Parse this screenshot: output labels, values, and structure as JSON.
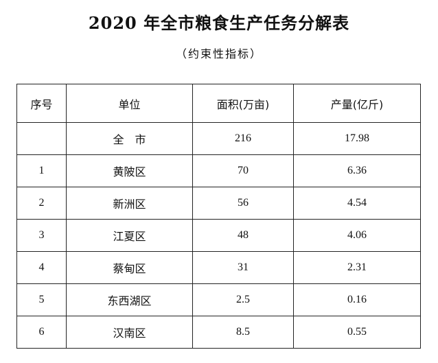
{
  "document": {
    "title": "2020 年全市粮食生产任务分解表",
    "subtitle": "（约束性指标）"
  },
  "table": {
    "headers": [
      "序号",
      "单位",
      "面积(万亩)",
      "产量(亿斤)"
    ],
    "rows": [
      {
        "index": "",
        "unit": "全　市",
        "area": "216",
        "output": "17.98"
      },
      {
        "index": "1",
        "unit": "黄陂区",
        "area": "70",
        "output": "6.36"
      },
      {
        "index": "2",
        "unit": "新洲区",
        "area": "56",
        "output": "4.54"
      },
      {
        "index": "3",
        "unit": "江夏区",
        "area": "48",
        "output": "4.06"
      },
      {
        "index": "4",
        "unit": "蔡甸区",
        "area": "31",
        "output": "2.31"
      },
      {
        "index": "5",
        "unit": "东西湖区",
        "area": "2.5",
        "output": "0.16"
      },
      {
        "index": "6",
        "unit": "汉南区",
        "area": "8.5",
        "output": "0.55"
      }
    ]
  }
}
